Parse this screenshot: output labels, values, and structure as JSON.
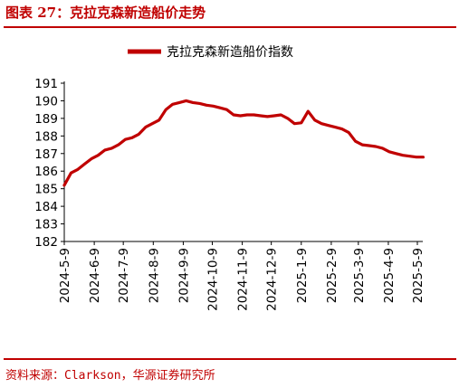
{
  "header": {
    "figure_title": "图表 27：克拉克森新造船价走势"
  },
  "footer": {
    "source": "资料来源：Clarkson，华源证券研究所"
  },
  "colors": {
    "accent": "#c00000",
    "axis": "#000000"
  },
  "chart_data": {
    "type": "line",
    "title": "",
    "xlabel": "",
    "ylabel": "",
    "ylim": [
      182,
      191
    ],
    "yticks": [
      182,
      183,
      184,
      185,
      186,
      187,
      188,
      189,
      190,
      191
    ],
    "grid": false,
    "legend_position": "top-center",
    "x_tick_labels": [
      "2024-5-9",
      "2024-6-9",
      "2024-7-9",
      "2024-8-9",
      "2024-9-9",
      "2024-10-9",
      "2024-11-9",
      "2024-12-9",
      "2025-1-9",
      "2025-2-9",
      "2025-3-9",
      "2025-4-9",
      "2025-5-9"
    ],
    "series": [
      {
        "name": "克拉克森新造船价指数",
        "color": "#c00000",
        "x": [
          "2024-5-9",
          "2024-5-16",
          "2024-5-23",
          "2024-5-30",
          "2024-6-6",
          "2024-6-13",
          "2024-6-20",
          "2024-6-27",
          "2024-7-4",
          "2024-7-11",
          "2024-7-18",
          "2024-7-25",
          "2024-8-1",
          "2024-8-8",
          "2024-8-15",
          "2024-8-22",
          "2024-8-29",
          "2024-9-5",
          "2024-9-12",
          "2024-9-19",
          "2024-9-26",
          "2024-10-3",
          "2024-10-10",
          "2024-10-17",
          "2024-10-24",
          "2024-10-31",
          "2024-11-7",
          "2024-11-14",
          "2024-11-21",
          "2024-11-28",
          "2024-12-5",
          "2024-12-12",
          "2024-12-19",
          "2024-12-26",
          "2025-1-2",
          "2025-1-9",
          "2025-1-16",
          "2025-1-23",
          "2025-1-30",
          "2025-2-6",
          "2025-2-13",
          "2025-2-20",
          "2025-2-27",
          "2025-3-6",
          "2025-3-13",
          "2025-3-20",
          "2025-3-27",
          "2025-4-3",
          "2025-4-10",
          "2025-4-17",
          "2025-4-24",
          "2025-5-1",
          "2025-5-8",
          "2025-5-15"
        ],
        "y": [
          185.2,
          185.9,
          186.1,
          186.4,
          186.7,
          186.9,
          187.2,
          187.3,
          187.5,
          187.8,
          187.9,
          188.1,
          188.5,
          188.7,
          188.9,
          189.5,
          189.8,
          189.9,
          190.0,
          189.9,
          189.85,
          189.75,
          189.7,
          189.6,
          189.5,
          189.2,
          189.15,
          189.2,
          189.2,
          189.15,
          189.1,
          189.15,
          189.2,
          189.0,
          188.7,
          188.75,
          189.4,
          188.9,
          188.7,
          188.6,
          188.5,
          188.4,
          188.2,
          187.7,
          187.5,
          187.45,
          187.4,
          187.3,
          187.1,
          187.0,
          186.9,
          186.85,
          186.8,
          186.8
        ]
      }
    ]
  }
}
